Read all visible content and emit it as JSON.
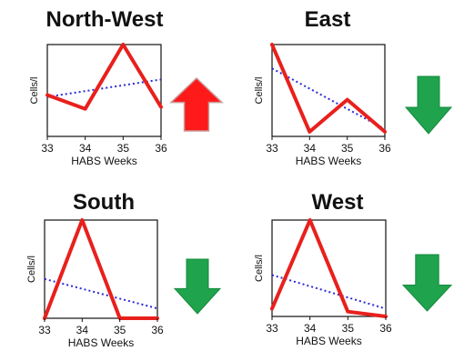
{
  "colors": {
    "series": "#e8201c",
    "trend": "#2a2ad6",
    "arrow_up": "#ff1a1a",
    "arrow_up_edge": "#c89a9a",
    "arrow_down": "#1fa34c"
  },
  "chart_data": [
    {
      "type": "line",
      "title": "North-West",
      "xlabel": "HABS Weeks",
      "ylabel": "Cells/l",
      "x": [
        33,
        34,
        35,
        36
      ],
      "xticks": [
        "33",
        "34",
        "35",
        "36"
      ],
      "xlim": [
        33,
        36
      ],
      "ylim": [
        0,
        1
      ],
      "series": [
        {
          "values": [
            0.45,
            0.3,
            1.0,
            0.32
          ]
        }
      ],
      "trendline": [
        0.43,
        0.62
      ],
      "trend_arrow": "up",
      "grid": false
    },
    {
      "type": "line",
      "title": "East",
      "xlabel": "HABS Weeks",
      "ylabel": "Cells/l",
      "x": [
        33,
        34,
        35,
        36
      ],
      "xticks": [
        "33",
        "34",
        "35",
        "36"
      ],
      "xlim": [
        33,
        36
      ],
      "ylim": [
        0,
        1
      ],
      "series": [
        {
          "values": [
            1.0,
            0.05,
            0.4,
            0.05
          ]
        }
      ],
      "trendline": [
        0.74,
        0.08
      ],
      "trend_arrow": "down",
      "grid": false
    },
    {
      "type": "line",
      "title": "South",
      "xlabel": "HABS Weeks",
      "ylabel": "Cells/l",
      "x": [
        33,
        34,
        35,
        36
      ],
      "xticks": [
        "33",
        "34",
        "35",
        "36"
      ],
      "xlim": [
        33,
        36
      ],
      "ylim": [
        0,
        1
      ],
      "series": [
        {
          "values": [
            0.0,
            1.0,
            0.0,
            0.0
          ]
        }
      ],
      "trendline": [
        0.4,
        0.1
      ],
      "trend_arrow": "down",
      "grid": false
    },
    {
      "type": "line",
      "title": "West",
      "xlabel": "HABS Weeks",
      "ylabel": "Cells/l",
      "x": [
        33,
        34,
        35,
        36
      ],
      "xticks": [
        "33",
        "34",
        "35",
        "36"
      ],
      "xlim": [
        33,
        36
      ],
      "ylim": [
        0,
        1
      ],
      "series": [
        {
          "values": [
            0.08,
            1.0,
            0.05,
            0.0
          ]
        }
      ],
      "trendline": [
        0.43,
        0.08
      ],
      "trend_arrow": "down",
      "grid": false
    }
  ]
}
